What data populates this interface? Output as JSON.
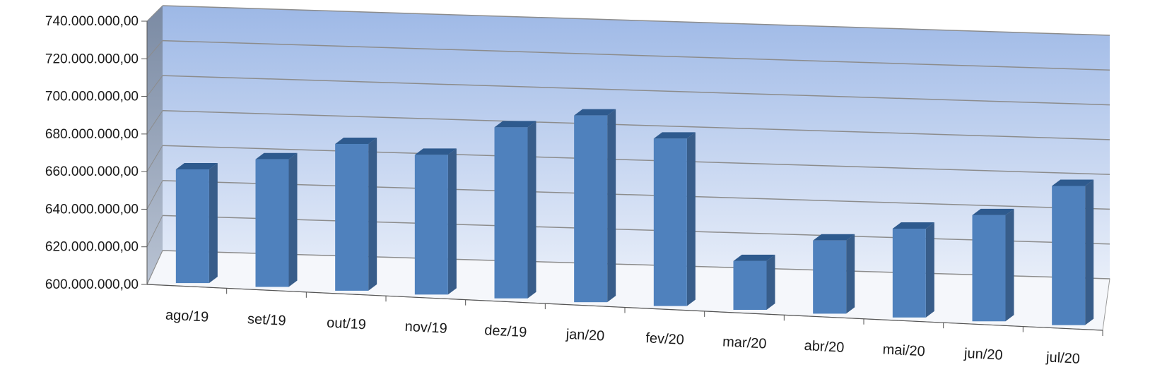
{
  "chart_data": {
    "type": "bar",
    "categories": [
      "ago/19",
      "set/19",
      "out/19",
      "nov/19",
      "dez/19",
      "jan/20",
      "fev/20",
      "mar/20",
      "abr/20",
      "mai/20",
      "jun/20",
      "jul/20"
    ],
    "values": [
      665000000,
      673000000,
      684000000,
      680000000,
      698000000,
      707000000,
      696000000,
      628000000,
      642000000,
      651000000,
      661000000,
      680000000
    ],
    "ylim": [
      600000000,
      740000000
    ],
    "yticks": [
      "600.000.000,00",
      "620.000.000,00",
      "640.000.000,00",
      "660.000.000,00",
      "680.000.000,00",
      "700.000.000,00",
      "720.000.000,00",
      "740.000.000,00"
    ],
    "grid": true,
    "legend": "none",
    "style": "3d-column",
    "colors": {
      "bar_front": "#4F81BD",
      "bar_side": "#385D8A",
      "bar_top": "#2E5A8E",
      "wall_top": "#9DB8E6",
      "wall_bottom": "#E8EEF9",
      "side_wall": "#8494AC",
      "gridline": "#8C8C8C"
    }
  }
}
